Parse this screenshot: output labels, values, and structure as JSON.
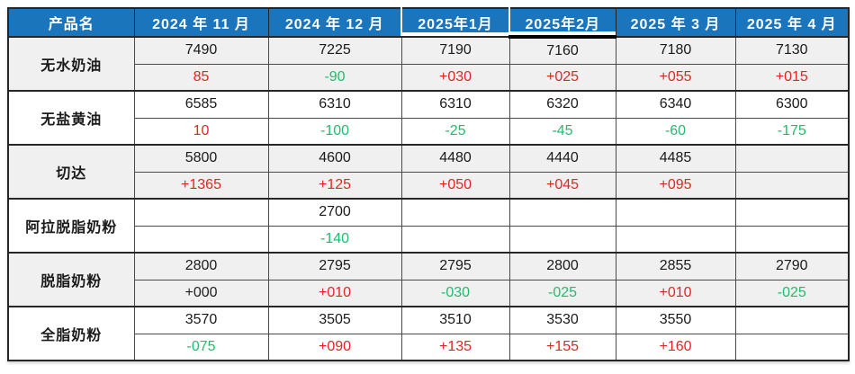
{
  "colors": {
    "header_bg": "#1b75bc",
    "header_text": "#ffffff",
    "red": "#e02525",
    "green": "#22bb6d",
    "black_chg": "#1f1f1f",
    "stripe_bg": "#f0f0f0",
    "border_dark": "#262626",
    "border_light": "#4a4a4a"
  },
  "chart_data": {
    "type": "table",
    "columns": [
      "产品名",
      "2024 年 11 月",
      "2024 年 12 月",
      "2025年1月",
      "2025年2月",
      "2025 年 3 月",
      "2025 年 4 月"
    ],
    "row_structure": "each product has a price row and a change row",
    "products": [
      {
        "name": "无水奶油",
        "prices": [
          "7490",
          "7225",
          "7190",
          "7160",
          "7180",
          "7130"
        ],
        "changes": [
          "85",
          "-90",
          "+030",
          "+025",
          "+055",
          "+015"
        ],
        "change_styles": [
          "red",
          "green",
          "red",
          "red",
          "red",
          "red"
        ]
      },
      {
        "name": "无盐黄油",
        "prices": [
          "6585",
          "6310",
          "6310",
          "6320",
          "6340",
          "6300"
        ],
        "changes": [
          "10",
          "-100",
          "-25",
          "-45",
          "-60",
          "-175"
        ],
        "change_styles": [
          "red",
          "green",
          "green",
          "green",
          "green",
          "green"
        ]
      },
      {
        "name": "切达",
        "prices": [
          "5800",
          "4600",
          "4480",
          "4440",
          "4485",
          ""
        ],
        "changes": [
          "+1365",
          "+125",
          "+050",
          "+045",
          "+095",
          ""
        ],
        "change_styles": [
          "red",
          "red",
          "red",
          "red",
          "red",
          "none"
        ]
      },
      {
        "name": "阿拉脱脂奶粉",
        "prices": [
          "",
          "2700",
          "",
          "",
          "",
          ""
        ],
        "changes": [
          "",
          "-140",
          "",
          "",
          "",
          ""
        ],
        "change_styles": [
          "none",
          "green",
          "none",
          "none",
          "none",
          "none"
        ]
      },
      {
        "name": "脱脂奶粉",
        "prices": [
          "2800",
          "2795",
          "2795",
          "2800",
          "2855",
          "2790"
        ],
        "changes": [
          "+000",
          "+010",
          "-030",
          "-025",
          "+010",
          "-025"
        ],
        "change_styles": [
          "black",
          "red",
          "green",
          "green",
          "red",
          "green"
        ]
      },
      {
        "name": "全脂奶粉",
        "prices": [
          "3570",
          "3505",
          "3510",
          "3530",
          "3550",
          ""
        ],
        "changes": [
          "-075",
          "+090",
          "+135",
          "+155",
          "+160",
          ""
        ],
        "change_styles": [
          "green",
          "red",
          "red",
          "red",
          "red",
          "none"
        ]
      }
    ]
  }
}
